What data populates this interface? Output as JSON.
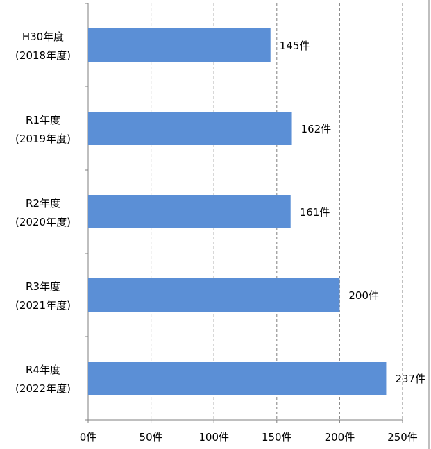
{
  "chart_data": {
    "type": "bar",
    "orientation": "horizontal",
    "categories": [
      [
        "H30年度",
        "(2018年度)"
      ],
      [
        "R1年度",
        "(2019年度)"
      ],
      [
        "R2年度",
        "(2020年度)"
      ],
      [
        "R3年度",
        "(2021年度)"
      ],
      [
        "R4年度",
        "(2022年度)"
      ]
    ],
    "values": [
      145,
      162,
      161,
      200,
      237
    ],
    "value_labels": [
      "145件",
      "162件",
      "161件",
      "200件",
      "237件"
    ],
    "xlim": [
      0,
      250
    ],
    "x_ticks": [
      0,
      50,
      100,
      150,
      200,
      250
    ],
    "x_tick_labels": [
      "0件",
      "50件",
      "100件",
      "150件",
      "200件",
      "250件"
    ],
    "title": "",
    "xlabel": "",
    "ylabel": "",
    "grid": "vertical dashed",
    "legend": "none",
    "bar_color": "#5b8fd6",
    "grid_color": "#808080",
    "axis_color": "#7f7f7f"
  }
}
